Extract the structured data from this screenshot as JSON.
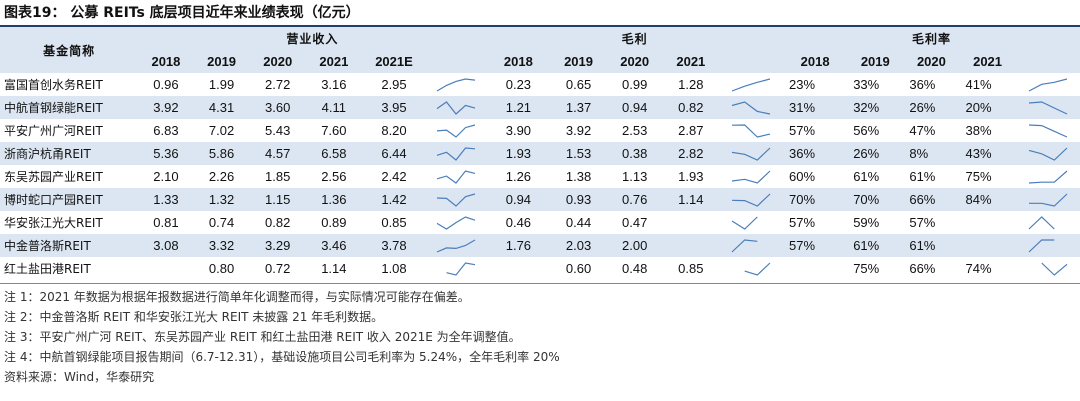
{
  "title": "图表19： 公募 REITs 底层项目近年来业绩表现（亿元）",
  "header": {
    "fund_name": "基金简称",
    "groups": {
      "revenue": "营业收入",
      "gross_profit": "毛利",
      "gross_margin": "毛利率"
    },
    "years": {
      "y2018": "2018",
      "y2019": "2019",
      "y2020": "2020",
      "y2021": "2021",
      "y2021e": "2021E"
    }
  },
  "rows": [
    {
      "name": "富国首创水务REIT",
      "rev": [
        "0.96",
        "1.99",
        "2.72",
        "3.16",
        "2.95"
      ],
      "gp": [
        "0.23",
        "0.65",
        "0.99",
        "1.28"
      ],
      "gm": [
        "23%",
        "33%",
        "36%",
        "41%"
      ]
    },
    {
      "name": "中航首钢绿能REIT",
      "rev": [
        "3.92",
        "4.31",
        "3.60",
        "4.11",
        "3.95"
      ],
      "gp": [
        "1.21",
        "1.37",
        "0.94",
        "0.82"
      ],
      "gm": [
        "31%",
        "32%",
        "26%",
        "20%"
      ]
    },
    {
      "name": "平安广州广河REIT",
      "rev": [
        "6.83",
        "7.02",
        "5.43",
        "7.60",
        "8.20"
      ],
      "gp": [
        "3.90",
        "3.92",
        "2.53",
        "2.87"
      ],
      "gm": [
        "57%",
        "56%",
        "47%",
        "38%"
      ]
    },
    {
      "name": "浙商沪杭甬REIT",
      "rev": [
        "5.36",
        "5.86",
        "4.57",
        "6.58",
        "6.44"
      ],
      "gp": [
        "1.93",
        "1.53",
        "0.38",
        "2.82"
      ],
      "gm": [
        "36%",
        "26%",
        "8%",
        "43%"
      ]
    },
    {
      "name": "东吴苏园产业REIT",
      "rev": [
        "2.10",
        "2.26",
        "1.85",
        "2.56",
        "2.42"
      ],
      "gp": [
        "1.26",
        "1.38",
        "1.13",
        "1.93"
      ],
      "gm": [
        "60%",
        "61%",
        "61%",
        "75%"
      ]
    },
    {
      "name": "博时蛇口产园REIT",
      "rev": [
        "1.33",
        "1.32",
        "1.15",
        "1.36",
        "1.42"
      ],
      "gp": [
        "0.94",
        "0.93",
        "0.76",
        "1.14"
      ],
      "gm": [
        "70%",
        "70%",
        "66%",
        "84%"
      ]
    },
    {
      "name": "华安张江光大REIT",
      "rev": [
        "0.81",
        "0.74",
        "0.82",
        "0.89",
        "0.85"
      ],
      "gp": [
        "0.46",
        "0.44",
        "0.47",
        ""
      ],
      "gm": [
        "57%",
        "59%",
        "57%",
        ""
      ]
    },
    {
      "name": "中金普洛斯REIT",
      "rev": [
        "3.08",
        "3.32",
        "3.29",
        "3.46",
        "3.78"
      ],
      "gp": [
        "1.76",
        "2.03",
        "2.00",
        ""
      ],
      "gm": [
        "57%",
        "61%",
        "61%",
        ""
      ]
    },
    {
      "name": "红土盐田港REIT",
      "rev": [
        "",
        "0.80",
        "0.72",
        "1.14",
        "1.08"
      ],
      "gp": [
        "",
        "0.60",
        "0.48",
        "0.85"
      ],
      "gm": [
        "",
        "75%",
        "66%",
        "74%"
      ]
    }
  ],
  "notes": [
    "注 1：2021 年数据为根据年报数据进行简单年化调整而得，与实际情况可能存在偏差。",
    "注 2：中金普洛斯 REIT 和华安张江光大 REIT 未披露 21 年毛利数据。",
    "注 3：平安广州广河 REIT、东吴苏园产业 REIT 和红土盐田港 REIT 收入 2021E 为全年调整值。",
    "注 4：中航首钢绿能项目报告期间（6.7-12.31），基础设施项目公司毛利率为 5.24%，全年毛利率 20%",
    "资料来源：Wind，华泰研究"
  ],
  "colors": {
    "header_bg": "#dce6f2",
    "stripe_bg": "#dce6f2",
    "rule": "#1f3f73",
    "sparkline": "#4a7ebb"
  }
}
